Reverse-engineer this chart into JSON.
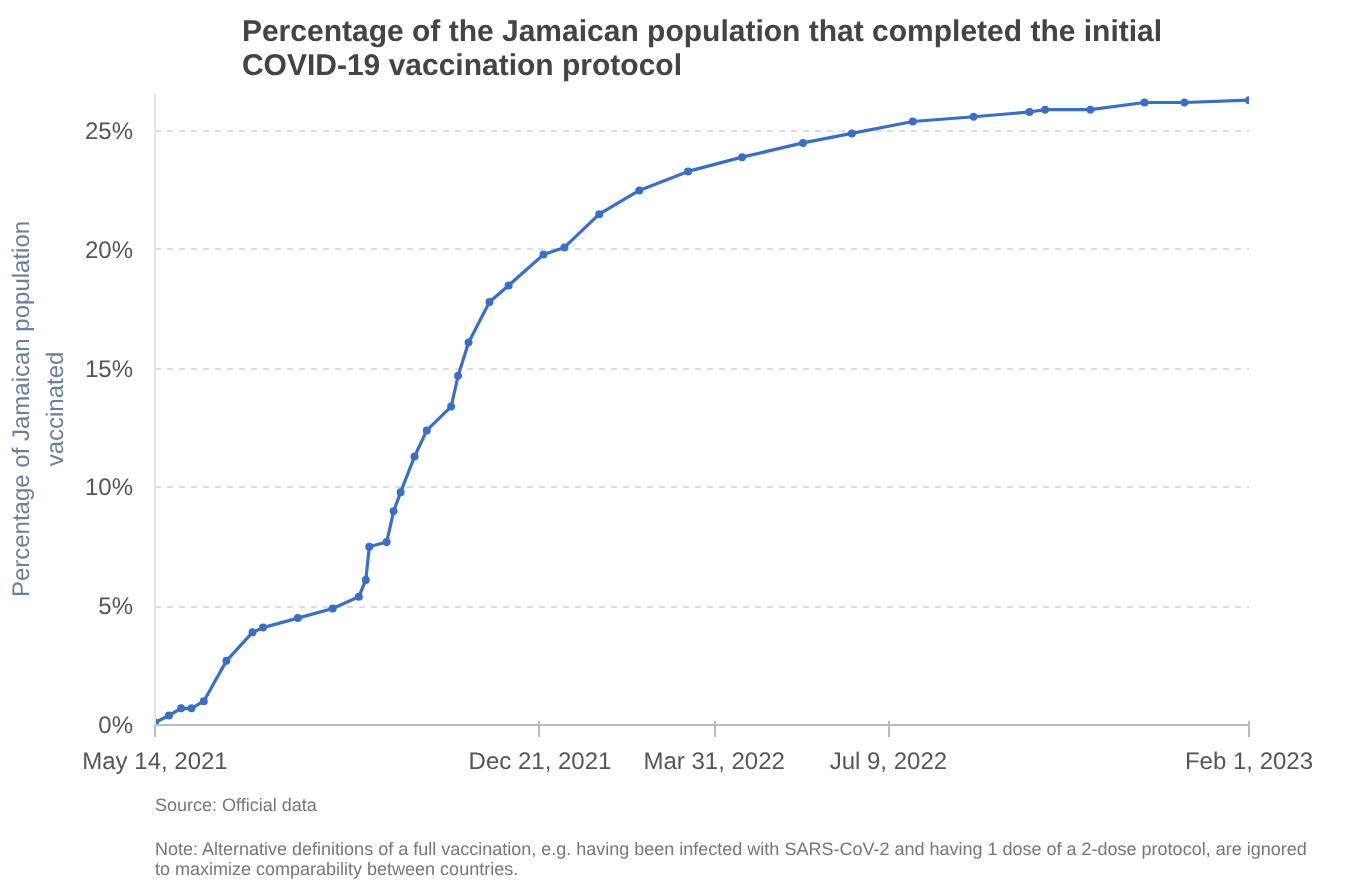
{
  "chart_data": {
    "type": "line",
    "title": "Percentage of the Jamaican population that completed the initial\nCOVID-19 vaccination protocol",
    "ylabel": "Percentage of Jamaican population\nvaccinated",
    "x": [
      "2021-05-14",
      "2021-05-22",
      "2021-05-29",
      "2021-06-04",
      "2021-06-11",
      "2021-06-24",
      "2021-07-09",
      "2021-07-15",
      "2021-08-04",
      "2021-08-24",
      "2021-09-08",
      "2021-09-12",
      "2021-09-14",
      "2021-09-24",
      "2021-09-28",
      "2021-10-02",
      "2021-10-10",
      "2021-10-17",
      "2021-10-31",
      "2021-11-04",
      "2021-11-10",
      "2021-11-22",
      "2021-12-03",
      "2021-12-23",
      "2022-01-04",
      "2022-01-24",
      "2022-02-16",
      "2022-03-16",
      "2022-04-16",
      "2022-05-21",
      "2022-06-18",
      "2022-07-23",
      "2022-08-27",
      "2022-09-28",
      "2022-10-07",
      "2022-11-02",
      "2022-12-03",
      "2022-12-26",
      "2023-02-01"
    ],
    "series": [
      {
        "color": "#3b6fc4",
        "values": [
          0.1,
          0.4,
          0.7,
          0.7,
          1.0,
          2.7,
          3.9,
          4.1,
          4.5,
          4.9,
          5.4,
          6.1,
          7.5,
          7.7,
          9.0,
          9.8,
          11.3,
          12.4,
          13.4,
          14.7,
          16.1,
          17.8,
          18.5,
          19.8,
          20.1,
          21.5,
          22.5,
          23.3,
          23.9,
          24.5,
          24.9,
          25.4,
          25.6,
          25.8,
          25.9,
          25.9,
          26.2,
          26.2,
          26.3
        ]
      }
    ],
    "xlim": [
      "2021-05-14",
      "2023-02-01"
    ],
    "xticks": [
      {
        "value": "2021-05-14",
        "label": "May 14, 2021"
      },
      {
        "value": "2021-12-21",
        "label": "Dec 21, 2021"
      },
      {
        "value": "2022-03-31",
        "label": "Mar 31, 2022"
      },
      {
        "value": "2022-07-09",
        "label": "Jul 9, 2022"
      },
      {
        "value": "2023-02-01",
        "label": "Feb 1, 2023"
      }
    ],
    "ylim": [
      0,
      26.6
    ],
    "yticks": [
      {
        "value": 0,
        "label": "0%"
      },
      {
        "value": 5,
        "label": "5%"
      },
      {
        "value": 10,
        "label": "10%"
      },
      {
        "value": 15,
        "label": "15%"
      },
      {
        "value": 20,
        "label": "20%"
      },
      {
        "value": 25,
        "label": "25%"
      }
    ],
    "grid": "y",
    "marker": "circle",
    "line_style": "solid",
    "annotations": [
      "Source: Official data",
      "Note: Alternative definitions of a full vaccination, e.g. having been infected with SARS-CoV-2 and having 1 dose of a 2-dose protocol, are ignored\nto maximize comparability between countries."
    ]
  }
}
